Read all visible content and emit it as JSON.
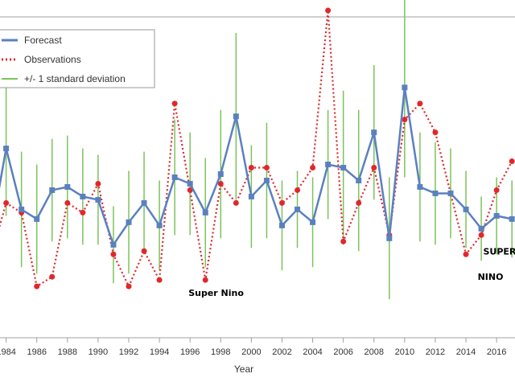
{
  "chart_data": {
    "type": "line",
    "title": "",
    "xlabel": "Year",
    "ylabel": "",
    "xlim": [
      1983.6,
      2017.2
    ],
    "ylim": [
      0,
      100
    ],
    "grid": false,
    "legend_position": "top-left",
    "x_ticks": [
      1984,
      1986,
      1988,
      1990,
      1992,
      1994,
      1996,
      1998,
      2000,
      2002,
      2004,
      2006,
      2008,
      2010,
      2012,
      2014,
      2016
    ],
    "x_tick_labels": [
      "1984",
      "1986",
      "1988",
      "1990",
      "1992",
      "1994",
      "1996",
      "1998",
      "2000",
      "2002",
      "2004",
      "2006",
      "2008",
      "2010",
      "2012",
      "2014",
      "2016"
    ],
    "x": [
      1983,
      1984,
      1985,
      1986,
      1987,
      1988,
      1989,
      1990,
      1991,
      1992,
      1993,
      1994,
      1995,
      1996,
      1997,
      1998,
      1999,
      2000,
      2001,
      2002,
      2003,
      2004,
      2005,
      2006,
      2007,
      2008,
      2009,
      2010,
      2011,
      2012,
      2013,
      2014,
      2015,
      2016,
      2017
    ],
    "series": [
      {
        "name": "Forecast",
        "color": "#5b80c0",
        "style": "solid-square-markers",
        "values": [
          32,
          59,
          40,
          37,
          46,
          47,
          44,
          43,
          29,
          36,
          42,
          35,
          50,
          48,
          39,
          51,
          69,
          44,
          49,
          35,
          40,
          36,
          54,
          53,
          49,
          64,
          31,
          78,
          47,
          45,
          45,
          40,
          34,
          38,
          37
        ]
      },
      {
        "name": "Observations",
        "color": "#e0282c",
        "style": "dotted-circle-markers",
        "values": [
          25,
          42,
          39,
          16,
          19,
          42,
          39,
          48,
          26,
          16,
          27,
          18,
          73,
          46,
          18,
          48,
          42,
          53,
          53,
          42,
          46,
          53,
          102,
          30,
          42,
          53,
          32,
          68,
          73,
          64,
          45,
          26,
          32,
          46,
          55
        ]
      }
    ],
    "error_bars": {
      "name": "+/- 1 standard deviation",
      "color": "#7cc35a",
      "values": [
        16,
        21,
        18,
        17,
        16,
        16,
        15,
        14,
        12,
        16,
        16,
        14,
        18,
        16,
        17,
        20,
        26,
        16,
        18,
        14,
        12,
        14,
        17,
        24,
        22,
        21,
        19,
        28,
        17,
        16,
        14,
        12,
        10,
        12,
        12
      ]
    },
    "annotations": [
      {
        "text": "Super Nino",
        "x": 1997.7,
        "y": 13
      },
      {
        "text": "SUPER",
        "x": 2016.2,
        "y": 26
      },
      {
        "text": "NINO",
        "x": 2015.6,
        "y": 18
      }
    ]
  }
}
